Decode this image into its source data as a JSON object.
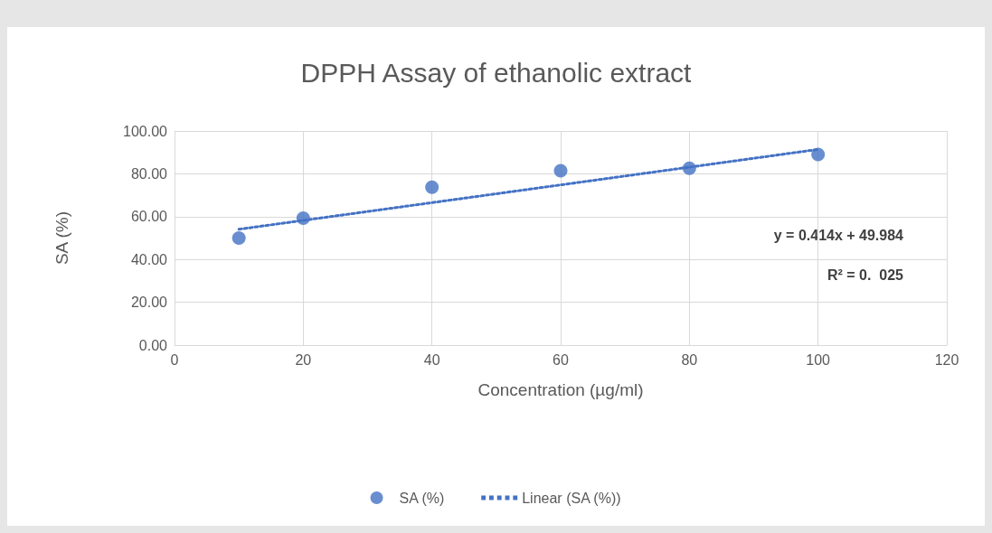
{
  "chart_data": {
    "type": "scatter",
    "title": "DPPH Assay of ethanolic extract",
    "xlabel": "Concentration (µg/ml)",
    "ylabel": "SA (%)",
    "x": [
      10,
      20,
      40,
      60,
      80,
      100
    ],
    "series": [
      {
        "name": "SA (%)",
        "color": "#4472c4",
        "marker": "circle",
        "values": [
          50.0,
          59.3,
          73.7,
          81.4,
          82.6,
          89.0
        ]
      },
      {
        "name": "Linear (SA (%))",
        "type": "line",
        "color": "#4472c4",
        "marker": "none",
        "line_style": "dotted",
        "x": [
          10,
          100
        ],
        "values": [
          54.1,
          91.4
        ]
      }
    ],
    "xlim": [
      0,
      120
    ],
    "xticks": [
      0,
      20,
      40,
      60,
      80,
      100,
      120
    ],
    "ylim": [
      0,
      100
    ],
    "yticks": [
      {
        "value": 0,
        "label": "0.00"
      },
      {
        "value": 20,
        "label": "20.00"
      },
      {
        "value": 40,
        "label": "40.00"
      },
      {
        "value": 60,
        "label": "60.00"
      },
      {
        "value": 80,
        "label": "80.00"
      },
      {
        "value": 100,
        "label": "100.00"
      }
    ],
    "grid": true,
    "legend": "bottom",
    "annotations": [
      "y = 0.414x + 49.984",
      "R² = 0.  025"
    ]
  }
}
